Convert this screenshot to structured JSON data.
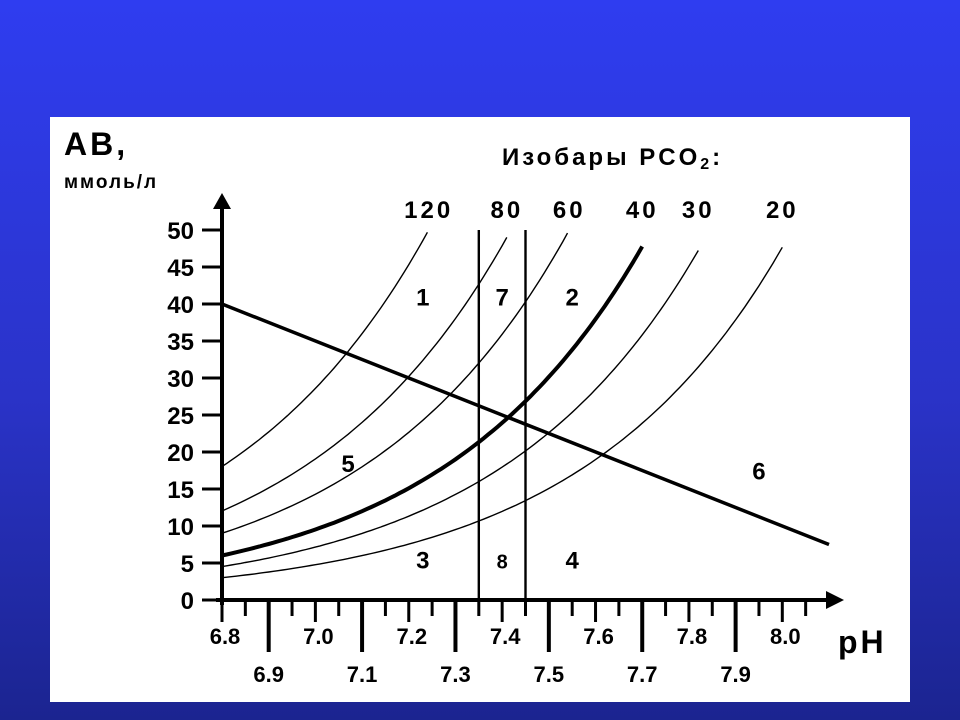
{
  "chart_data": {
    "type": "line",
    "ylabel": "AB,",
    "yunit": "ммоль/л",
    "xlabel": "pH",
    "isobar_title": "Изобары PCO",
    "isobar_title_sub": "2",
    "isobar_title_end": ":",
    "xlim": [
      6.8,
      8.1
    ],
    "ylim": [
      0,
      50
    ],
    "y_ticks": [
      "0",
      "5",
      "10",
      "15",
      "20",
      "25",
      "30",
      "35",
      "40",
      "45",
      "50"
    ],
    "y_tick_values": [
      0,
      5,
      10,
      15,
      20,
      25,
      30,
      35,
      40,
      45,
      50
    ],
    "x_ticks_upper": [
      {
        "label": "6.8",
        "value": 6.8
      },
      {
        "label": "7.0",
        "value": 7.0
      },
      {
        "label": "7.2",
        "value": 7.2
      },
      {
        "label": "7.4",
        "value": 7.4
      },
      {
        "label": "7.6",
        "value": 7.6
      },
      {
        "label": "7.8",
        "value": 7.8
      },
      {
        "label": "8.0",
        "value": 8.0
      }
    ],
    "x_ticks_lower": [
      {
        "label": "6.9",
        "value": 6.9
      },
      {
        "label": "7.1",
        "value": 7.1
      },
      {
        "label": "7.3",
        "value": 7.3
      },
      {
        "label": "7.5",
        "value": 7.5
      },
      {
        "label": "7.7",
        "value": 7.7
      },
      {
        "label": "7.9",
        "value": 7.9
      }
    ],
    "isobars": [
      {
        "label": "120",
        "pco2": 120,
        "x_start": 6.8,
        "x_end": 7.25,
        "bold": false
      },
      {
        "label": "80",
        "pco2": 80,
        "x_start": 6.8,
        "x_end": 7.41,
        "bold": false
      },
      {
        "label": "60",
        "pco2": 60,
        "x_start": 6.8,
        "x_end": 7.56,
        "bold": false
      },
      {
        "label": "40",
        "pco2": 40,
        "x_start": 6.8,
        "x_end": 7.7,
        "bold": true
      },
      {
        "label": "30",
        "pco2": 30,
        "x_start": 6.8,
        "x_end": 7.82,
        "bold": false
      },
      {
        "label": "20",
        "pco2": 20,
        "x_start": 6.8,
        "x_end": 8.0,
        "bold": false
      }
    ],
    "buffer_line": {
      "x": [
        6.8,
        8.1
      ],
      "y": [
        40,
        7.5
      ]
    },
    "vertical_lines": [
      7.35,
      7.45
    ],
    "region_labels": [
      {
        "label": "1",
        "x": 7.23,
        "y": 41
      },
      {
        "label": "7",
        "x": 7.4,
        "y": 41
      },
      {
        "label": "2",
        "x": 7.55,
        "y": 41
      },
      {
        "label": "5",
        "x": 7.07,
        "y": 18.5
      },
      {
        "label": "6",
        "x": 7.95,
        "y": 17.5
      },
      {
        "label": "3",
        "x": 7.23,
        "y": 5.5
      },
      {
        "label": "8",
        "x": 7.4,
        "y": 5.5
      },
      {
        "label": "4",
        "x": 7.55,
        "y": 5.5
      }
    ]
  }
}
